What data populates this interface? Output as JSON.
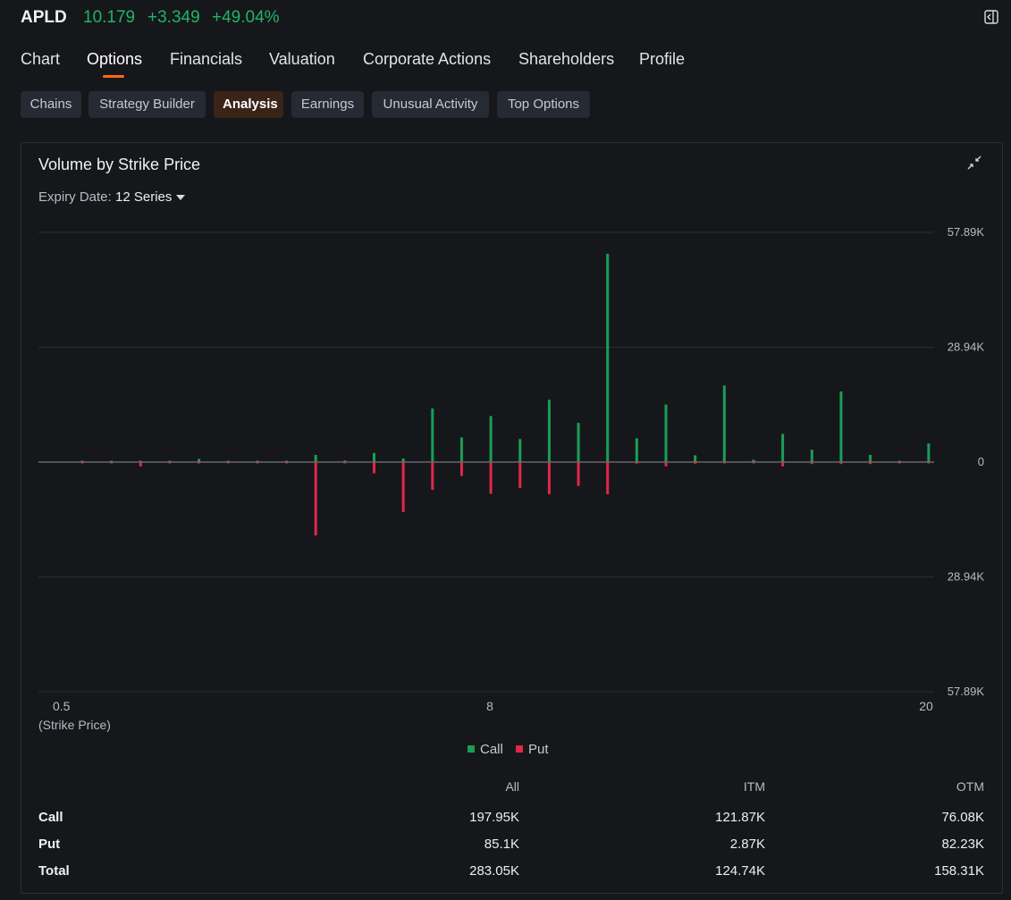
{
  "header": {
    "ticker": "APLD",
    "price": "10.179",
    "change": "+3.349",
    "change_pct": "+49.04%",
    "exit_icon": "exit-fullscreen-icon"
  },
  "tabs": [
    "Chart",
    "Options",
    "Financials",
    "Valuation",
    "Corporate Actions",
    "Shareholders",
    "Profile"
  ],
  "active_tab": "Options",
  "subtabs": [
    "Chains",
    "Strategy Builder",
    "Analysis",
    "Earnings",
    "Unusual Activity",
    "Top Options"
  ],
  "active_subtab": "Analysis",
  "panel": {
    "title": "Volume by Strike Price",
    "collapse_icon": "collapse-icon",
    "expiry_label": "Expiry Date:",
    "expiry_value": "12 Series"
  },
  "colors": {
    "call": "#1a9e57",
    "put": "#e0284b",
    "accent": "#ff6a1a",
    "positive": "#1fb567"
  },
  "chart_data": {
    "type": "bar",
    "x_ticks": [
      "0.5",
      "8",
      "20"
    ],
    "x_caption": "(Strike Price)",
    "y_ticks": [
      "57.89K",
      "28.94K",
      "0",
      "28.94K",
      "57.89K"
    ],
    "ylim": [
      -57890,
      57890
    ],
    "legend": [
      "Call",
      "Put"
    ],
    "series": [
      {
        "name": "Call",
        "values": [
          200,
          200,
          150,
          200,
          800,
          300,
          300,
          250,
          1800,
          400,
          2300,
          900,
          13500,
          6200,
          11600,
          5800,
          15700,
          9900,
          52500,
          6000,
          14500,
          1700,
          19300,
          600,
          7100,
          3100,
          17800,
          1800,
          300,
          4700
        ]
      },
      {
        "name": "Put",
        "values": [
          200,
          200,
          1100,
          200,
          200,
          200,
          200,
          100,
          18500,
          300,
          2800,
          12600,
          7000,
          3500,
          8000,
          6500,
          8100,
          6000,
          8100,
          400,
          1100,
          400,
          300,
          100,
          1100,
          500,
          500,
          500,
          100,
          300
        ]
      }
    ]
  },
  "stats": {
    "columns": [
      "All",
      "ITM",
      "OTM"
    ],
    "rows": [
      {
        "label": "Call",
        "values": [
          "197.95K",
          "121.87K",
          "76.08K"
        ]
      },
      {
        "label": "Put",
        "values": [
          "85.1K",
          "2.87K",
          "82.23K"
        ]
      },
      {
        "label": "Total",
        "values": [
          "283.05K",
          "124.74K",
          "158.31K"
        ]
      }
    ]
  }
}
